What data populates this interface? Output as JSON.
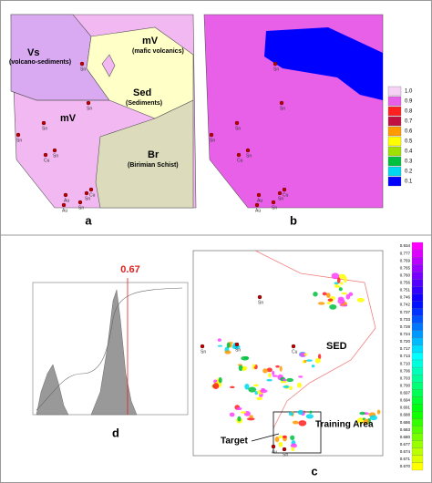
{
  "panels": {
    "a": {
      "label": "a",
      "units": [
        {
          "name": "Vs",
          "desc": "(volcano-sediments)"
        },
        {
          "name": "mV",
          "desc": "(mafic volcanics)"
        },
        {
          "name": "Sed",
          "desc": "(Sediments)"
        },
        {
          "name": "mV"
        },
        {
          "name": "Br",
          "desc": "(Birimian Schist)"
        }
      ],
      "points": [
        "Sn",
        "Sn",
        "Sn",
        "Sn",
        "Cu",
        "Sn",
        "Cu",
        "Au",
        "Au",
        "Sn",
        "Sn"
      ]
    },
    "b": {
      "label": "b",
      "legend": [
        {
          "label": "1.0",
          "color": "#f6d2f6"
        },
        {
          "label": "0.9",
          "color": "#e860e8"
        },
        {
          "label": "0.8",
          "color": "#ff2020"
        },
        {
          "label": "0.7",
          "color": "#c01040"
        },
        {
          "label": "0.6",
          "color": "#ff9a00"
        },
        {
          "label": "0.5",
          "color": "#ffff00"
        },
        {
          "label": "0.4",
          "color": "#a0e000"
        },
        {
          "label": "0.3",
          "color": "#00c040"
        },
        {
          "label": "0.2",
          "color": "#00d8f0"
        },
        {
          "label": "0.1",
          "color": "#0000ff"
        }
      ],
      "points": [
        "Sn",
        "Sn",
        "Sn",
        "Sn",
        "Cu",
        "Sn",
        "Cu",
        "Au",
        "Au",
        "Sn",
        "Sn"
      ]
    },
    "c": {
      "label": "c",
      "unit": "SED",
      "training": "Training Area",
      "target": "Target",
      "legend": [
        "0.934",
        "0.777",
        "0.769",
        "0.765",
        "0.760",
        "0.756",
        "0.751",
        "0.746",
        "0.742",
        "0.737",
        "0.733",
        "0.728",
        "0.724",
        "0.720",
        "0.717",
        "0.713",
        "0.710",
        "0.706",
        "0.703",
        "0.700",
        "0.697",
        "0.694",
        "0.691",
        "0.688",
        "0.686",
        "0.683",
        "0.680",
        "0.677",
        "0.674",
        "0.671",
        "0.670"
      ],
      "points": [
        "Sn",
        "Sn",
        "Sn",
        "Cu",
        "Au",
        "Sn"
      ]
    },
    "d": {
      "label": "d",
      "threshold": "0.67"
    }
  }
}
